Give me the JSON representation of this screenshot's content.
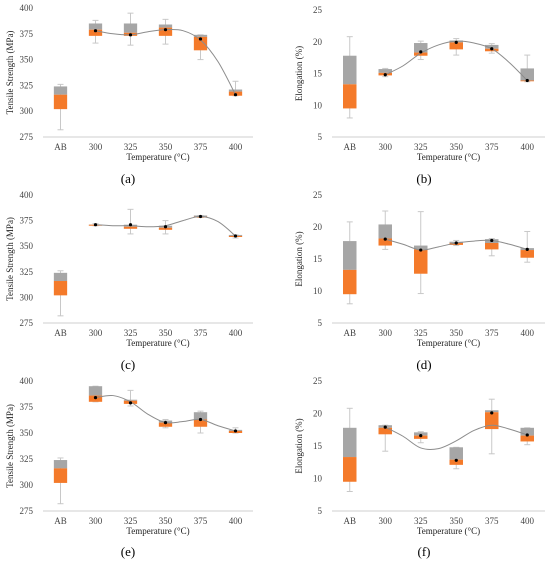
{
  "colors": {
    "upper_box": "#a6a6a6",
    "lower_box": "#f47a2a",
    "whisker": "#c8c8c8",
    "trend_line": "#8c8c8c",
    "mean_dot": "#000000",
    "axis": "#bfbfbf"
  },
  "chart_data": [
    {
      "panel": "(a)",
      "type": "box",
      "xlabel": "Temperature (°C)",
      "ylabel": "Tensile Strength (MPa)",
      "categories": [
        "AB",
        "300",
        "325",
        "350",
        "375",
        "400"
      ],
      "yticks": [
        "275",
        "300",
        "325",
        "350",
        "375",
        "400"
      ],
      "ylim": [
        275,
        400
      ],
      "boxes": [
        {
          "x": "AB",
          "min": 282,
          "q1": 302,
          "median": 316,
          "q3": 324,
          "max": 326
        },
        {
          "x": "300",
          "min": 366,
          "q1": 373,
          "median": 379,
          "q3": 385,
          "max": 388
        },
        {
          "x": "325",
          "min": 364,
          "q1": 373,
          "median": 376,
          "q3": 385,
          "max": 395
        },
        {
          "x": "350",
          "min": 365,
          "q1": 373,
          "median": 381,
          "q3": 384,
          "max": 389
        },
        {
          "x": "375",
          "min": 350,
          "q1": 359,
          "median": 372,
          "q3": 374,
          "max": 374
        },
        {
          "x": "400",
          "min": 315,
          "q1": 315,
          "median": 319,
          "q3": 321,
          "max": 329
        }
      ],
      "means": [
        null,
        378,
        374,
        379,
        370,
        316
      ],
      "trend": [
        [
          1,
          378
        ],
        [
          1.5,
          375
        ],
        [
          2,
          374
        ],
        [
          2.5,
          377
        ],
        [
          3,
          379
        ],
        [
          3.5,
          378
        ],
        [
          4,
          369
        ],
        [
          4.5,
          348
        ],
        [
          5,
          316
        ]
      ]
    },
    {
      "panel": "(b)",
      "type": "box",
      "xlabel": "Temperature (°C)",
      "ylabel": "Elongation (%)",
      "categories": [
        "AB",
        "300",
        "325",
        "350",
        "375",
        "400"
      ],
      "yticks": [
        "5",
        "10",
        "15",
        "20",
        "25"
      ],
      "ylim": [
        5,
        25
      ],
      "boxes": [
        {
          "x": "AB",
          "min": 8,
          "q1": 9.5,
          "median": 13.3,
          "q3": 17.8,
          "max": 20.8
        },
        {
          "x": "300",
          "min": 14.5,
          "q1": 14.7,
          "median": 15.1,
          "q3": 15.7,
          "max": 15.8
        },
        {
          "x": "325",
          "min": 17.2,
          "q1": 17.8,
          "median": 18.3,
          "q3": 19.8,
          "max": 20.1
        },
        {
          "x": "350",
          "min": 17.9,
          "q1": 18.8,
          "median": 19.9,
          "q3": 20.2,
          "max": 20.5
        },
        {
          "x": "375",
          "min": 18.2,
          "q1": 18.5,
          "median": 18.9,
          "q3": 19.5,
          "max": 19.7
        },
        {
          "x": "400",
          "min": 13.7,
          "q1": 13.9,
          "median": 13.9,
          "q3": 15.8,
          "max": 17.9
        }
      ],
      "means": [
        null,
        14.8,
        18.4,
        19.9,
        18.9,
        13.9
      ],
      "trend": [
        [
          1,
          14.8
        ],
        [
          1.5,
          16.2
        ],
        [
          2,
          18.2
        ],
        [
          2.5,
          19.5
        ],
        [
          3,
          20.1
        ],
        [
          3.5,
          19.8
        ],
        [
          4,
          18.9
        ],
        [
          4.5,
          16.7
        ],
        [
          5,
          13.9
        ]
      ]
    },
    {
      "panel": "(c)",
      "type": "box",
      "xlabel": "Temperature (°C)",
      "ylabel": "Tensile Strength (MPa)",
      "categories": [
        "AB",
        "300",
        "325",
        "350",
        "375",
        "400"
      ],
      "yticks": [
        "275",
        "300",
        "325",
        "350",
        "375",
        "400"
      ],
      "ylim": [
        275,
        400
      ],
      "boxes": [
        {
          "x": "AB",
          "min": 282,
          "q1": 302,
          "median": 316,
          "q3": 324,
          "max": 326
        },
        {
          "x": "300",
          "min": 370,
          "q1": 370,
          "median": 371,
          "q3": 371,
          "max": 372
        },
        {
          "x": "325",
          "min": 362,
          "q1": 367,
          "median": 369,
          "q3": 371,
          "max": 386
        },
        {
          "x": "350",
          "min": 362,
          "q1": 366,
          "median": 368,
          "q3": 370,
          "max": 375
        },
        {
          "x": "375",
          "min": 378,
          "q1": 378,
          "median": 379,
          "q3": 380,
          "max": 380
        },
        {
          "x": "400",
          "min": 358,
          "q1": 359,
          "median": 360,
          "q3": 361,
          "max": 361
        }
      ],
      "means": [
        null,
        371,
        371,
        369,
        379,
        360
      ],
      "trend": [
        [
          1,
          371
        ],
        [
          1.5,
          370
        ],
        [
          2,
          370
        ],
        [
          2.5,
          369
        ],
        [
          3,
          370
        ],
        [
          3.5,
          375
        ],
        [
          4,
          379
        ],
        [
          4.5,
          374
        ],
        [
          5,
          360
        ]
      ]
    },
    {
      "panel": "(d)",
      "type": "box",
      "xlabel": "Temperature (°C)",
      "ylabel": "Elongation (%)",
      "categories": [
        "AB",
        "300",
        "325",
        "350",
        "375",
        "400"
      ],
      "yticks": [
        "5",
        "10",
        "15",
        "20",
        "25"
      ],
      "ylim": [
        5,
        25
      ],
      "boxes": [
        {
          "x": "AB",
          "min": 8,
          "q1": 9.5,
          "median": 13.3,
          "q3": 17.8,
          "max": 20.8
        },
        {
          "x": "300",
          "min": 16.5,
          "q1": 17.1,
          "median": 18.2,
          "q3": 20.4,
          "max": 22.5
        },
        {
          "x": "325",
          "min": 9.6,
          "q1": 12.7,
          "median": 16.5,
          "q3": 17.1,
          "max": 22.4
        },
        {
          "x": "350",
          "min": 17.1,
          "q1": 17.2,
          "median": 17.5,
          "q3": 17.7,
          "max": 17.9
        },
        {
          "x": "375",
          "min": 15.5,
          "q1": 16.5,
          "median": 17.5,
          "q3": 18.1,
          "max": 18.2
        },
        {
          "x": "400",
          "min": 14.5,
          "q1": 15.2,
          "median": 16.4,
          "q3": 16.7,
          "max": 19.3
        }
      ],
      "means": [
        null,
        18.1,
        16.4,
        17.5,
        17.9,
        16.5
      ],
      "trend": [
        [
          1,
          18.1
        ],
        [
          1.5,
          17.3
        ],
        [
          2,
          16.4
        ],
        [
          2.5,
          16.9
        ],
        [
          3,
          17.5
        ],
        [
          3.5,
          17.8
        ],
        [
          4,
          17.9
        ],
        [
          4.5,
          17.3
        ],
        [
          5,
          16.5
        ]
      ]
    },
    {
      "panel": "(e)",
      "type": "box",
      "xlabel": "Temperature (°C)",
      "ylabel": "Tensile Strength (MPa)",
      "categories": [
        "AB",
        "300",
        "325",
        "350",
        "375",
        "400"
      ],
      "yticks": [
        "275",
        "300",
        "325",
        "350",
        "375",
        "400"
      ],
      "ylim": [
        275,
        400
      ],
      "boxes": [
        {
          "x": "AB",
          "min": 282,
          "q1": 302,
          "median": 316,
          "q3": 324,
          "max": 326
        },
        {
          "x": "300",
          "min": 380,
          "q1": 380,
          "median": 386,
          "q3": 395,
          "max": 395
        },
        {
          "x": "325",
          "min": 376,
          "q1": 378,
          "median": 381,
          "q3": 382,
          "max": 391
        },
        {
          "x": "350",
          "min": 355,
          "q1": 356,
          "median": 360,
          "q3": 362,
          "max": 363
        },
        {
          "x": "375",
          "min": 350,
          "q1": 356,
          "median": 363,
          "q3": 370,
          "max": 371
        },
        {
          "x": "400",
          "min": 350,
          "q1": 350,
          "median": 352,
          "q3": 353,
          "max": 355
        }
      ],
      "means": [
        null,
        384,
        379,
        360,
        363,
        352
      ],
      "trend": [
        [
          1,
          384
        ],
        [
          1.5,
          386
        ],
        [
          2,
          380
        ],
        [
          2.5,
          368
        ],
        [
          3,
          360
        ],
        [
          3.5,
          361
        ],
        [
          4,
          363
        ],
        [
          4.5,
          357
        ],
        [
          5,
          352
        ]
      ]
    },
    {
      "panel": "(f)",
      "type": "box",
      "xlabel": "Temperature (°C)",
      "ylabel": "Elongation (%)",
      "categories": [
        "AB",
        "300",
        "325",
        "350",
        "375",
        "400"
      ],
      "yticks": [
        "5",
        "10",
        "15",
        "20",
        "25"
      ],
      "ylim": [
        5,
        25
      ],
      "boxes": [
        {
          "x": "AB",
          "min": 8,
          "q1": 9.5,
          "median": 13.3,
          "q3": 17.8,
          "max": 20.8
        },
        {
          "x": "300",
          "min": 14.2,
          "q1": 16.8,
          "median": 17.8,
          "q3": 18.2,
          "max": 18.2
        },
        {
          "x": "325",
          "min": 15.5,
          "q1": 16.1,
          "median": 16.6,
          "q3": 17.1,
          "max": 17.2
        },
        {
          "x": "350",
          "min": 11.5,
          "q1": 12.1,
          "median": 12.9,
          "q3": 14.8,
          "max": 14.8
        },
        {
          "x": "375",
          "min": 13.8,
          "q1": 17.6,
          "median": 20.2,
          "q3": 20.5,
          "max": 22.2
        },
        {
          "x": "400",
          "min": 15.2,
          "q1": 15.7,
          "median": 16.6,
          "q3": 17.8,
          "max": 17.8
        }
      ],
      "means": [
        null,
        17.9,
        16.6,
        12.8,
        20.1,
        16.7
      ],
      "trend": [
        [
          1,
          17.9
        ],
        [
          1.5,
          16.5
        ],
        [
          2,
          14.7
        ],
        [
          2.5,
          14.6
        ],
        [
          3,
          15.8
        ],
        [
          3.5,
          17.4
        ],
        [
          4,
          18.2
        ],
        [
          4.5,
          17.6
        ],
        [
          5,
          16.7
        ]
      ]
    }
  ]
}
